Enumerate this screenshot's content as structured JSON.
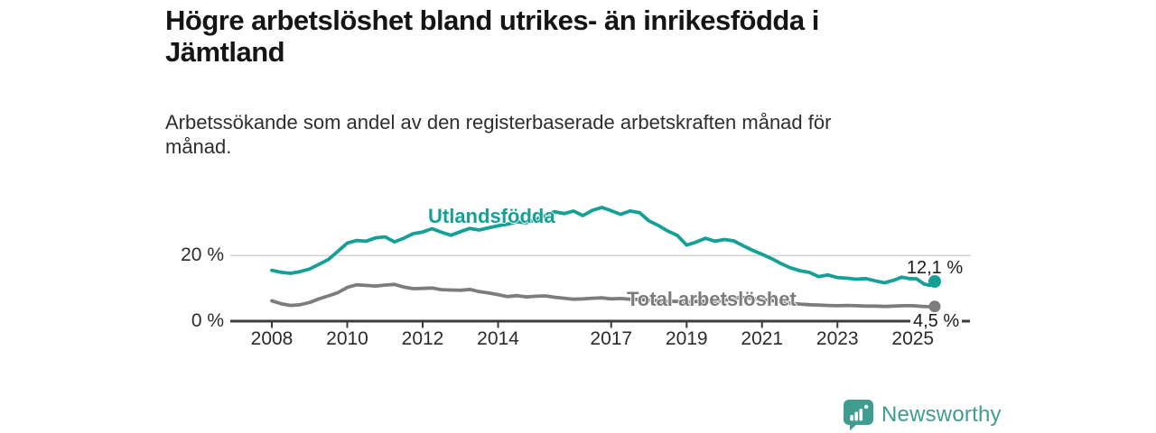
{
  "header": {
    "title": "Högre arbetslöshet bland utrikes- än inrikesfödda i\nJämtland",
    "subtitle": "Arbetssökande som andel av den registerbaserade arbetskraften månad för\nmånad."
  },
  "chart_data": {
    "type": "line",
    "unit": "%",
    "x_range": [
      2008,
      2025.7
    ],
    "y_range": [
      0,
      36
    ],
    "x_ticks": [
      2008,
      2010,
      2012,
      2014,
      2017,
      2019,
      2021,
      2023,
      2025
    ],
    "y_ticks": [
      {
        "value": 0,
        "label": "0 %"
      },
      {
        "value": 20,
        "label": "20 %"
      }
    ],
    "grid": "single horizontal gridline at 20 %",
    "legend": "inline labels attached to lines, end values labelled at last point",
    "series": [
      {
        "name": "Utlandsfödda",
        "color": "#14A096",
        "end_label": "12,1 %",
        "end_value": 12.1,
        "points": [
          [
            2008,
            15.5
          ],
          [
            2008.25,
            14.9
          ],
          [
            2008.5,
            14.6
          ],
          [
            2008.75,
            15.1
          ],
          [
            2009,
            15.9
          ],
          [
            2009.25,
            17.3
          ],
          [
            2009.5,
            18.8
          ],
          [
            2009.75,
            21.3
          ],
          [
            2010,
            23.8
          ],
          [
            2010.25,
            24.6
          ],
          [
            2010.5,
            24.4
          ],
          [
            2010.75,
            25.4
          ],
          [
            2011,
            25.7
          ],
          [
            2011.25,
            24.2
          ],
          [
            2011.5,
            25.3
          ],
          [
            2011.75,
            26.7
          ],
          [
            2012,
            27.2
          ],
          [
            2012.25,
            28.2
          ],
          [
            2012.5,
            27.1
          ],
          [
            2012.75,
            26.2
          ],
          [
            2013,
            27.3
          ],
          [
            2013.25,
            28.3
          ],
          [
            2013.5,
            27.8
          ],
          [
            2013.75,
            28.5
          ],
          [
            2014,
            29.1
          ],
          [
            2014.25,
            29.6
          ],
          [
            2014.5,
            30.3
          ],
          [
            2014.75,
            30.0
          ],
          [
            2015,
            31.0
          ],
          [
            2015.25,
            32.3
          ],
          [
            2015.5,
            33.4
          ],
          [
            2015.75,
            32.8
          ],
          [
            2016,
            33.6
          ],
          [
            2016.25,
            32.2
          ],
          [
            2016.5,
            33.8
          ],
          [
            2016.75,
            34.7
          ],
          [
            2017,
            33.7
          ],
          [
            2017.25,
            32.6
          ],
          [
            2017.5,
            33.6
          ],
          [
            2017.75,
            33.1
          ],
          [
            2018,
            30.6
          ],
          [
            2018.25,
            29.2
          ],
          [
            2018.5,
            27.5
          ],
          [
            2018.75,
            26.2
          ],
          [
            2019,
            23.2
          ],
          [
            2019.25,
            24.1
          ],
          [
            2019.5,
            25.3
          ],
          [
            2019.75,
            24.4
          ],
          [
            2020,
            24.9
          ],
          [
            2020.25,
            24.5
          ],
          [
            2020.5,
            23.0
          ],
          [
            2020.75,
            21.6
          ],
          [
            2021,
            20.4
          ],
          [
            2021.25,
            19.1
          ],
          [
            2021.5,
            17.6
          ],
          [
            2021.75,
            16.3
          ],
          [
            2022,
            15.4
          ],
          [
            2022.25,
            14.9
          ],
          [
            2022.5,
            13.6
          ],
          [
            2022.75,
            14.1
          ],
          [
            2023,
            13.3
          ],
          [
            2023.25,
            13.1
          ],
          [
            2023.5,
            12.8
          ],
          [
            2023.75,
            13.0
          ],
          [
            2024,
            12.3
          ],
          [
            2024.25,
            11.7
          ],
          [
            2024.5,
            12.5
          ],
          [
            2024.7,
            13.4
          ],
          [
            2024.9,
            13.0
          ],
          [
            2025.1,
            12.9
          ],
          [
            2025.3,
            11.3
          ],
          [
            2025.45,
            10.9
          ],
          [
            2025.58,
            12.1
          ]
        ]
      },
      {
        "name": "Total arbetslöshet",
        "color": "#7C7C7C",
        "end_label": "4,5 %",
        "end_value": 4.5,
        "points": [
          [
            2008,
            6.2
          ],
          [
            2008.25,
            5.3
          ],
          [
            2008.5,
            4.8
          ],
          [
            2008.75,
            5.0
          ],
          [
            2009,
            5.7
          ],
          [
            2009.25,
            6.8
          ],
          [
            2009.5,
            7.7
          ],
          [
            2009.75,
            8.7
          ],
          [
            2010,
            10.3
          ],
          [
            2010.25,
            11.1
          ],
          [
            2010.5,
            10.9
          ],
          [
            2010.75,
            10.7
          ],
          [
            2011,
            11.0
          ],
          [
            2011.25,
            11.2
          ],
          [
            2011.5,
            10.4
          ],
          [
            2011.75,
            9.9
          ],
          [
            2012,
            10.0
          ],
          [
            2012.25,
            10.1
          ],
          [
            2012.5,
            9.6
          ],
          [
            2012.75,
            9.5
          ],
          [
            2013,
            9.4
          ],
          [
            2013.25,
            9.7
          ],
          [
            2013.5,
            9.0
          ],
          [
            2013.75,
            8.6
          ],
          [
            2014,
            8.1
          ],
          [
            2014.25,
            7.5
          ],
          [
            2014.5,
            7.8
          ],
          [
            2014.75,
            7.4
          ],
          [
            2015,
            7.6
          ],
          [
            2015.25,
            7.7
          ],
          [
            2015.5,
            7.3
          ],
          [
            2015.75,
            7.0
          ],
          [
            2016,
            6.7
          ],
          [
            2016.25,
            6.8
          ],
          [
            2016.5,
            7.0
          ],
          [
            2016.75,
            7.1
          ],
          [
            2017,
            6.8
          ],
          [
            2017.25,
            6.9
          ],
          [
            2017.5,
            6.7
          ],
          [
            2017.75,
            6.6
          ],
          [
            2018,
            6.4
          ],
          [
            2018.25,
            6.2
          ],
          [
            2018.5,
            6.1
          ],
          [
            2018.75,
            6.0
          ],
          [
            2019,
            5.9
          ],
          [
            2019.25,
            6.0
          ],
          [
            2019.5,
            6.1
          ],
          [
            2019.75,
            6.0
          ],
          [
            2020,
            6.3
          ],
          [
            2020.25,
            7.1
          ],
          [
            2020.5,
            7.2
          ],
          [
            2020.75,
            6.9
          ],
          [
            2021,
            6.6
          ],
          [
            2021.25,
            6.3
          ],
          [
            2021.5,
            5.9
          ],
          [
            2021.75,
            5.5
          ],
          [
            2022,
            5.2
          ],
          [
            2022.25,
            5.0
          ],
          [
            2022.5,
            4.9
          ],
          [
            2022.75,
            4.8
          ],
          [
            2023,
            4.7
          ],
          [
            2023.25,
            4.8
          ],
          [
            2023.5,
            4.7
          ],
          [
            2023.75,
            4.6
          ],
          [
            2024,
            4.6
          ],
          [
            2024.25,
            4.5
          ],
          [
            2024.5,
            4.6
          ],
          [
            2024.75,
            4.7
          ],
          [
            2025,
            4.7
          ],
          [
            2025.25,
            4.5
          ],
          [
            2025.45,
            4.4
          ],
          [
            2025.58,
            4.5
          ]
        ]
      }
    ]
  },
  "footer": {
    "brand": "Newsworthy"
  },
  "colors": {
    "accent_teal": "#14A096",
    "series_gray": "#7C7C7C",
    "logo_teal": "#3E9C90",
    "axis": "#3B3B3B",
    "grid": "#D5D5D5",
    "title_text": "#151515",
    "body_text": "#2E2E2E"
  }
}
